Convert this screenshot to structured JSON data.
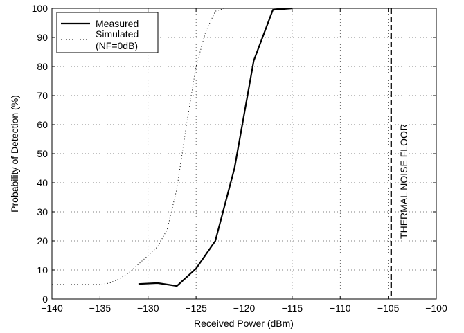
{
  "chart_data": {
    "type": "line",
    "title": "",
    "xlabel": "Received Power (dBm)",
    "ylabel": "Probability of Detection (%)",
    "xlim": [
      -140,
      -100
    ],
    "ylim": [
      0,
      100
    ],
    "xticks": [
      -140,
      -135,
      -130,
      -125,
      -120,
      -115,
      -110,
      -105,
      -100
    ],
    "yticks": [
      0,
      10,
      20,
      30,
      40,
      50,
      60,
      70,
      80,
      90,
      100
    ],
    "grid": true,
    "legend_position": "top-left",
    "series": [
      {
        "name": "Measured",
        "style": "solid",
        "color": "#000000",
        "x": [
          -131,
          -129,
          -127,
          -125,
          -123,
          -121,
          -119,
          -117,
          -115
        ],
        "y": [
          5.2,
          5.5,
          4.5,
          10.5,
          20,
          45,
          82,
          99.5,
          100
        ]
      },
      {
        "name": "Simulated (NF=0dB)",
        "legend_lines": [
          "Simulated",
          "(NF=0dB)"
        ],
        "style": "dotted",
        "color": "#000000",
        "x": [
          -140,
          -138,
          -136,
          -135,
          -134,
          -133,
          -132,
          -131,
          -130,
          -129,
          -128,
          -127,
          -126,
          -125,
          -124,
          -123,
          -122,
          -121,
          -120
        ],
        "y": [
          5,
          5,
          5,
          5,
          5.5,
          7,
          9,
          12,
          15,
          18,
          24,
          38,
          60,
          80,
          92,
          99,
          100,
          100,
          100
        ]
      }
    ],
    "annotations": [
      {
        "text": "THERMAL NOISE FLOOR",
        "x": -104.7,
        "style": "dashed-vertical-line",
        "orientation": "vertical"
      }
    ]
  }
}
